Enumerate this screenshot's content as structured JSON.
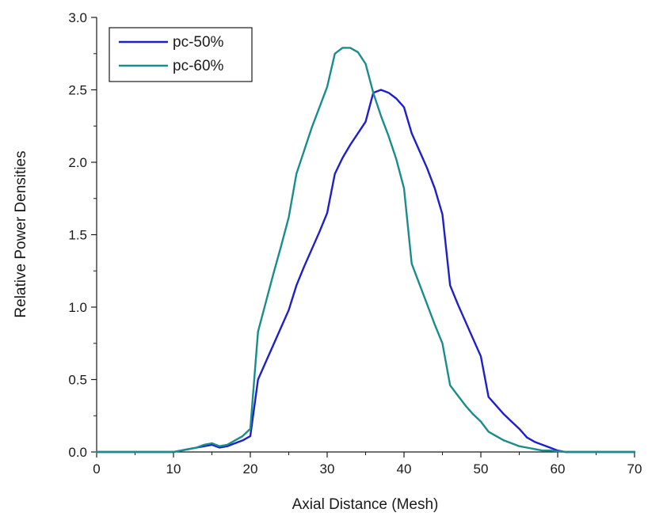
{
  "chart_data": {
    "type": "line",
    "title": "",
    "xlabel": "Axial Distance (Mesh)",
    "ylabel": "Relative Power Densities",
    "xlim": [
      0,
      70
    ],
    "ylim": [
      0,
      3.0
    ],
    "x_ticks": [
      0,
      10,
      20,
      30,
      40,
      50,
      60,
      70
    ],
    "y_ticks": [
      0,
      0.5,
      1.0,
      1.5,
      2.0,
      2.5,
      3.0
    ],
    "x_tick_labels": [
      "0",
      "10",
      "20",
      "30",
      "40",
      "50",
      "60",
      "70"
    ],
    "y_tick_labels": [
      "0.0",
      "0.5",
      "1.0",
      "1.5",
      "2.0",
      "2.5",
      "3.0"
    ],
    "grid": false,
    "legend_position": "top-left",
    "series": [
      {
        "name": "pc-50%",
        "color": "#1f1fc8",
        "x": [
          0,
          10,
          11,
          12,
          13,
          14,
          15,
          16,
          17,
          18,
          19,
          20,
          21,
          22,
          23,
          24,
          25,
          26,
          27,
          28,
          29,
          30,
          31,
          32,
          33,
          34,
          35,
          36,
          37,
          38,
          39,
          40,
          41,
          42,
          43,
          44,
          45,
          46,
          47,
          48,
          49,
          50,
          51,
          52,
          53,
          54,
          55,
          56,
          57,
          58,
          59,
          60,
          61,
          70
        ],
        "y": [
          0,
          0,
          0.01,
          0.02,
          0.03,
          0.04,
          0.05,
          0.03,
          0.04,
          0.06,
          0.08,
          0.11,
          0.5,
          0.62,
          0.74,
          0.86,
          0.98,
          1.15,
          1.28,
          1.4,
          1.52,
          1.65,
          1.92,
          2.03,
          2.12,
          2.2,
          2.28,
          2.48,
          2.5,
          2.48,
          2.44,
          2.38,
          2.2,
          2.08,
          1.96,
          1.82,
          1.64,
          1.15,
          1.02,
          0.9,
          0.78,
          0.66,
          0.38,
          0.32,
          0.26,
          0.21,
          0.16,
          0.1,
          0.07,
          0.05,
          0.03,
          0.01,
          0,
          0
        ]
      },
      {
        "name": "pc-60%",
        "color": "#1a8c8c",
        "x": [
          0,
          10,
          11,
          12,
          13,
          14,
          15,
          16,
          17,
          18,
          19,
          20,
          21,
          22,
          23,
          24,
          25,
          26,
          27,
          28,
          29,
          30,
          31,
          32,
          33,
          34,
          35,
          36,
          37,
          38,
          39,
          40,
          41,
          42,
          43,
          44,
          45,
          46,
          47,
          48,
          49,
          50,
          51,
          52,
          53,
          54,
          55,
          56,
          57,
          58,
          59,
          60,
          61,
          70
        ],
        "y": [
          0,
          0,
          0.01,
          0.02,
          0.03,
          0.05,
          0.06,
          0.04,
          0.05,
          0.08,
          0.11,
          0.16,
          0.83,
          1.03,
          1.23,
          1.42,
          1.62,
          1.92,
          2.08,
          2.24,
          2.38,
          2.52,
          2.75,
          2.79,
          2.79,
          2.76,
          2.68,
          2.48,
          2.32,
          2.18,
          2.02,
          1.82,
          1.3,
          1.16,
          1.02,
          0.88,
          0.75,
          0.46,
          0.39,
          0.32,
          0.26,
          0.21,
          0.14,
          0.11,
          0.08,
          0.06,
          0.04,
          0.03,
          0.02,
          0.01,
          0.01,
          0.005,
          0,
          0
        ]
      }
    ]
  }
}
